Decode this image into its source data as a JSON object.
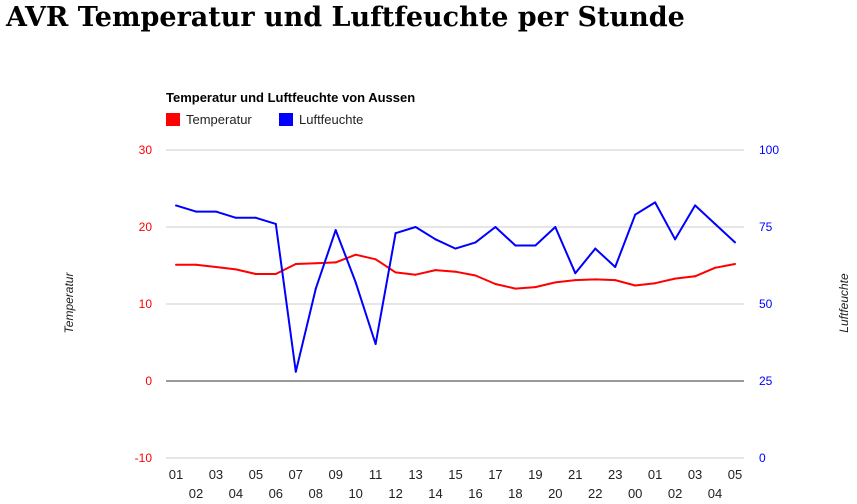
{
  "page": {
    "heading": "AVR Temperatur und Luftfeuchte per Stunde"
  },
  "colors": {
    "temperature": "#ff0000",
    "humidity": "#0000ff",
    "grid": "#cccccc",
    "baseline": "#333333",
    "text": "#222222"
  },
  "chart_data": {
    "type": "line",
    "title": "Temperatur und Luftfeuchte von Aussen",
    "legend": "top-left",
    "grid": true,
    "x": [
      "01",
      "02",
      "03",
      "04",
      "05",
      "06",
      "07",
      "08",
      "09",
      "10",
      "11",
      "12",
      "13",
      "14",
      "15",
      "16",
      "17",
      "18",
      "19",
      "20",
      "21",
      "22",
      "23",
      "00",
      "01",
      "02",
      "03",
      "04",
      "05"
    ],
    "y_left": {
      "label": "Temperatur",
      "range": [
        -10,
        30
      ],
      "ticks": [
        "-10",
        "0",
        "10",
        "20",
        "30"
      ]
    },
    "y_right": {
      "label": "Luftfeuchte",
      "range": [
        0,
        100
      ],
      "ticks": [
        "0",
        "25",
        "50",
        "75",
        "100"
      ]
    },
    "series": [
      {
        "name": "Temperatur",
        "axis": "left",
        "values": [
          15.1,
          15.1,
          14.8,
          14.5,
          13.9,
          13.9,
          15.2,
          15.3,
          15.4,
          16.4,
          15.8,
          14.1,
          13.8,
          14.4,
          14.2,
          13.7,
          12.6,
          12.0,
          12.2,
          12.8,
          13.1,
          13.2,
          13.1,
          12.4,
          12.7,
          13.3,
          13.6,
          14.7,
          15.2
        ]
      },
      {
        "name": "Luftfeuchte",
        "axis": "right",
        "values": [
          82,
          80,
          80,
          78,
          78,
          76,
          28,
          55,
          74,
          57,
          37,
          73,
          75,
          71,
          68,
          70,
          75,
          69,
          69,
          75,
          60,
          68,
          62,
          79,
          83,
          71,
          82,
          76,
          70
        ]
      }
    ]
  }
}
